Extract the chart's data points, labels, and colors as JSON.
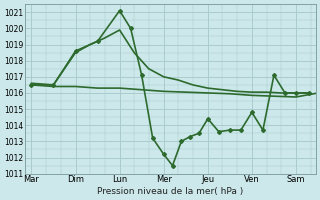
{
  "background_color": "#cce8ea",
  "grid_color": "#aacccc",
  "line_color": "#2d6a2d",
  "title": "Pression niveau de la mer( hPa )",
  "ylim": [
    1011,
    1021.5
  ],
  "yticks": [
    1011,
    1012,
    1013,
    1014,
    1015,
    1016,
    1017,
    1018,
    1019,
    1020,
    1021
  ],
  "x_labels": [
    "Mar",
    "Dim",
    "Lun",
    "Mer",
    "Jeu",
    "Ven",
    "Sam"
  ],
  "x_positions": [
    0,
    1,
    2,
    3,
    4,
    5,
    6
  ],
  "xlim": [
    -0.15,
    6.45
  ],
  "series": [
    {
      "x": [
        0,
        0.5,
        1.0,
        1.5,
        2.0,
        2.5,
        3.0,
        3.5,
        4.0,
        4.5,
        5.0,
        5.5,
        6.0,
        6.5
      ],
      "y": [
        1016.5,
        1016.4,
        1016.4,
        1016.3,
        1016.3,
        1016.2,
        1016.1,
        1016.05,
        1016.0,
        1015.95,
        1015.85,
        1015.8,
        1015.75,
        1016.0
      ],
      "marker": null,
      "linewidth": 1.2
    },
    {
      "x": [
        0,
        0.5,
        1.0,
        1.33,
        1.66,
        2.0,
        2.33,
        2.66,
        3.0,
        3.33,
        3.66,
        4.0,
        4.33,
        4.66,
        5.0,
        5.33,
        5.66,
        6.0,
        6.33
      ],
      "y": [
        1016.6,
        1016.5,
        1018.5,
        1019.0,
        1019.4,
        1019.9,
        1018.5,
        1017.5,
        1017.0,
        1016.8,
        1016.5,
        1016.3,
        1016.2,
        1016.1,
        1016.05,
        1016.05,
        1016.0,
        1016.0,
        1016.0
      ],
      "marker": null,
      "linewidth": 1.2
    },
    {
      "x": [
        0,
        0.5,
        1.0,
        1.5,
        2.0,
        2.25,
        2.5,
        2.75,
        3.0,
        3.2,
        3.4,
        3.6,
        3.8,
        4.0,
        4.25,
        4.5,
        4.75,
        5.0,
        5.25,
        5.5,
        5.75,
        6.0,
        6.3
      ],
      "y": [
        1016.5,
        1016.5,
        1018.6,
        1019.2,
        1021.1,
        1020.0,
        1017.1,
        1013.2,
        1012.2,
        1011.5,
        1013.0,
        1013.3,
        1013.5,
        1014.4,
        1013.6,
        1013.7,
        1013.7,
        1014.8,
        1013.7,
        1017.1,
        1016.0,
        1016.0,
        1016.0
      ],
      "marker": "D",
      "markersize": 2.0,
      "linewidth": 1.2
    }
  ]
}
